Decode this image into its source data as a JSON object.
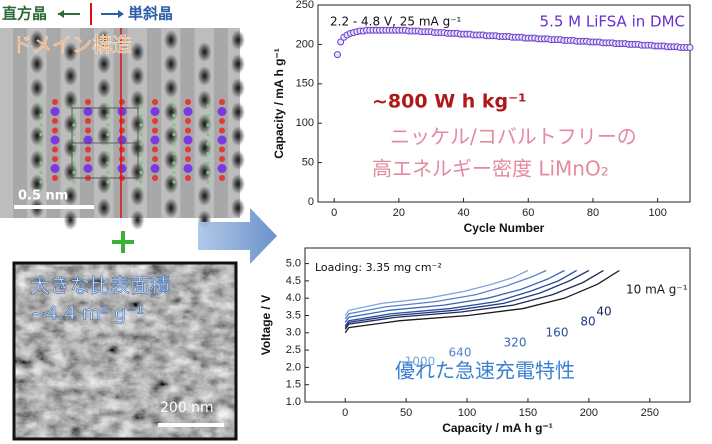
{
  "left_panel": {
    "orthorhombic": "直方晶",
    "monoclinic": "単斜晶",
    "domain_label": "ドメイン構造",
    "scale_top": "0.5 nm",
    "surface_label": "大きな比表面積",
    "surface_value": "~4.4 m² g⁻¹",
    "scale_bottom": "200 nm"
  },
  "chart_data": [
    {
      "type": "scatter",
      "xlabel": "Cycle Number",
      "ylabel": "Capacity  /  mA h g⁻¹",
      "annotations": [
        "2.2 - 4.8 V, 25 mA g⁻¹",
        "5.5 M LiFSA in DMC",
        "~800 W h kg⁻¹",
        "ニッケル/コバルトフリーの",
        "高エネルギー密度 LiMnO₂"
      ],
      "color": "#6a3fd0",
      "x": [
        1,
        2,
        3,
        4,
        5,
        6,
        7,
        8,
        9,
        10,
        11,
        12,
        13,
        14,
        15,
        16,
        17,
        18,
        19,
        20,
        21,
        22,
        23,
        24,
        25,
        26,
        27,
        28,
        29,
        30,
        31,
        32,
        33,
        34,
        35,
        36,
        37,
        38,
        39,
        40,
        41,
        42,
        43,
        44,
        45,
        46,
        47,
        48,
        49,
        50,
        51,
        52,
        53,
        54,
        55,
        56,
        57,
        58,
        59,
        60,
        61,
        62,
        63,
        64,
        65,
        66,
        67,
        68,
        69,
        70,
        71,
        72,
        73,
        74,
        75,
        76,
        77,
        78,
        79,
        80,
        81,
        82,
        83,
        84,
        85,
        86,
        87,
        88,
        89,
        90,
        91,
        92,
        93,
        94,
        95,
        96,
        97,
        98,
        99,
        100,
        101,
        102,
        103,
        104,
        105,
        106,
        107,
        108,
        109,
        110
      ],
      "values": [
        187,
        203,
        209,
        212,
        214,
        215,
        216,
        217,
        217,
        218,
        218,
        218,
        218,
        218,
        218,
        218,
        218,
        218,
        218,
        218,
        218,
        218,
        217,
        217,
        217,
        217,
        216,
        216,
        216,
        216,
        215,
        215,
        215,
        215,
        214,
        214,
        214,
        214,
        213,
        213,
        213,
        213,
        212,
        212,
        212,
        212,
        211,
        211,
        211,
        211,
        210,
        210,
        210,
        210,
        209,
        209,
        209,
        209,
        208,
        208,
        208,
        208,
        207,
        207,
        207,
        207,
        206,
        206,
        206,
        206,
        205,
        205,
        205,
        205,
        204,
        204,
        204,
        204,
        203,
        203,
        203,
        203,
        202,
        202,
        202,
        202,
        201,
        201,
        201,
        201,
        200,
        200,
        200,
        200,
        199,
        199,
        199,
        199,
        198,
        198,
        198,
        198,
        197,
        197,
        197,
        197,
        196,
        196,
        196,
        196
      ],
      "xlim": [
        -5,
        110
      ],
      "ylim": [
        0,
        250
      ],
      "xticks": [
        0,
        20,
        40,
        60,
        80,
        100
      ],
      "yticks": [
        0,
        50,
        100,
        150,
        200,
        250
      ]
    },
    {
      "type": "line",
      "xlabel": "Capacity  /  mA h g⁻¹",
      "ylabel": "Voltage  /  V",
      "annotations": [
        "Loading: 3.35 mg cm⁻²",
        "優れた急速充電特性"
      ],
      "xlim": [
        -33,
        283
      ],
      "ylim": [
        1.0,
        5.45
      ],
      "xticks": [
        0,
        50,
        100,
        150,
        200,
        250
      ],
      "yticks": [
        {
          "value": 1.0,
          "label": "1.0"
        },
        {
          "value": 1.5,
          "label": "1.5"
        },
        {
          "value": 2.0,
          "label": "2.0"
        },
        {
          "value": 2.5,
          "label": "2.5"
        },
        {
          "value": 3.0,
          "label": "3.0"
        },
        {
          "value": 3.5,
          "label": "3.5"
        },
        {
          "value": 4.0,
          "label": "4.0"
        },
        {
          "value": 4.5,
          "label": "4.5"
        },
        {
          "value": 5.0,
          "label": "5.0"
        }
      ],
      "series": [
        {
          "name": "10 mA g⁻¹",
          "color": "#1a1a1a",
          "x": [
            0,
            3,
            45,
            101,
            146,
            180,
            207,
            225
          ],
          "values": [
            3.0,
            3.15,
            3.35,
            3.5,
            3.7,
            4.0,
            4.4,
            4.8
          ]
        },
        {
          "name": "40",
          "color": "#1f2a5a",
          "x": [
            0,
            3,
            42,
            95,
            138,
            170,
            195,
            212
          ],
          "values": [
            3.1,
            3.25,
            3.45,
            3.6,
            3.8,
            4.1,
            4.45,
            4.8
          ]
        },
        {
          "name": "80",
          "color": "#203a80",
          "x": [
            0,
            3,
            40,
            90,
            130,
            160,
            184,
            200
          ],
          "values": [
            3.15,
            3.3,
            3.5,
            3.65,
            3.85,
            4.15,
            4.5,
            4.8
          ]
        },
        {
          "name": "160",
          "color": "#2a4f9e",
          "x": [
            0,
            3,
            38,
            86,
            124,
            152,
            175,
            190
          ],
          "values": [
            3.2,
            3.35,
            3.55,
            3.7,
            3.9,
            4.2,
            4.5,
            4.8
          ]
        },
        {
          "name": "320",
          "color": "#3a68b8",
          "x": [
            0,
            3,
            36,
            81,
            117,
            144,
            166,
            180
          ],
          "values": [
            3.3,
            3.45,
            3.65,
            3.8,
            4.0,
            4.25,
            4.55,
            4.8
          ]
        },
        {
          "name": "640",
          "color": "#5583cc",
          "x": [
            0,
            3,
            33,
            74,
            107,
            132,
            152,
            165
          ],
          "values": [
            3.4,
            3.55,
            3.75,
            3.9,
            4.1,
            4.35,
            4.6,
            4.8
          ]
        },
        {
          "name": "1000",
          "color": "#7aa6de",
          "x": [
            0,
            3,
            30,
            68,
            98,
            120,
            138,
            150
          ],
          "values": [
            3.5,
            3.65,
            3.85,
            4.0,
            4.2,
            4.4,
            4.6,
            4.8
          ]
        }
      ]
    }
  ]
}
